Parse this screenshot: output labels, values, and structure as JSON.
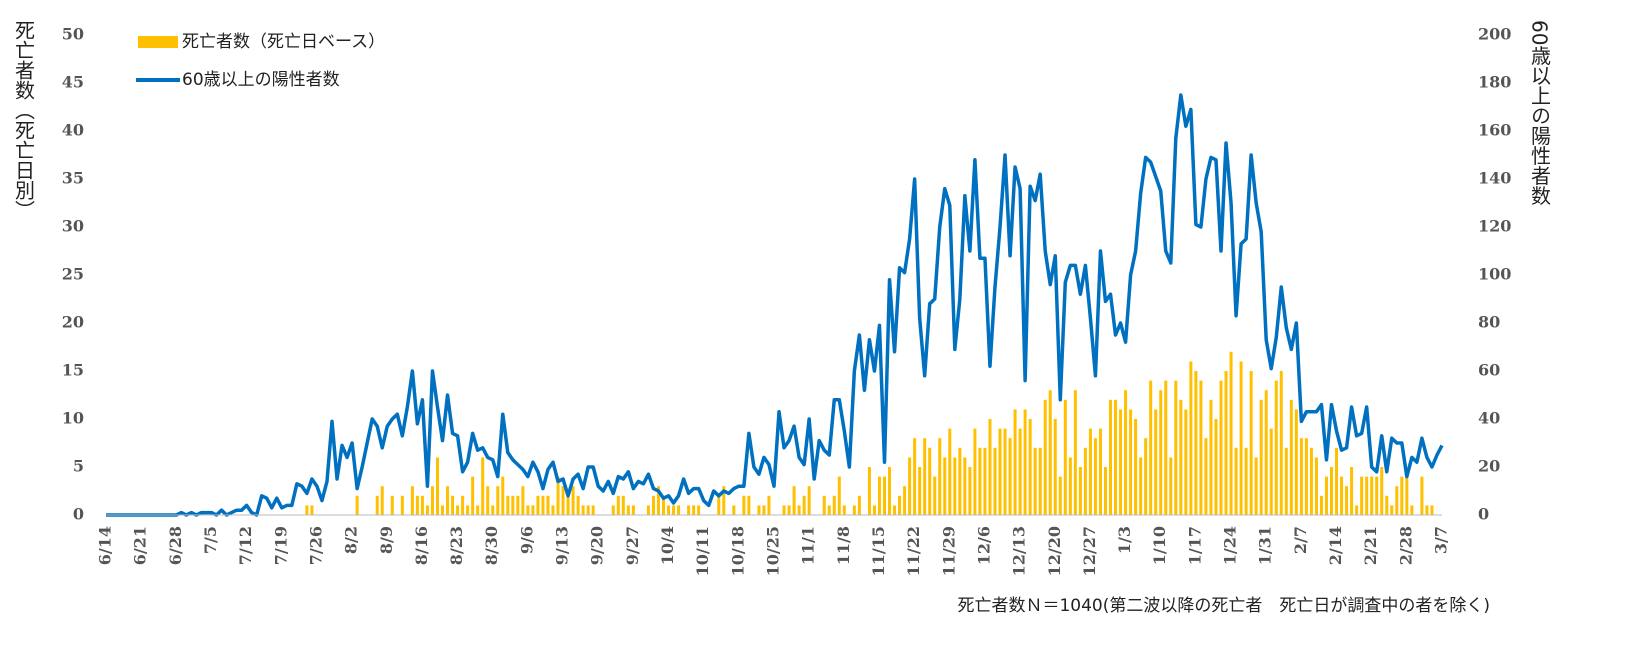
{
  "chart_data": {
    "type": "bar_line",
    "legend_position": "upper left",
    "y_label": "死亡者数（死亡日別）",
    "y2_label": "60歳以上の陽性者数",
    "footnote": "死亡者数Ｎ＝1040(第二波以降の死亡者　死亡日が調査中の者を除く)",
    "ylim": [
      0,
      50
    ],
    "yticks": [
      0,
      5,
      10,
      15,
      20,
      25,
      30,
      35,
      40,
      45,
      50
    ],
    "y2lim": [
      0,
      200
    ],
    "y2ticks": [
      0,
      20,
      40,
      60,
      80,
      100,
      120,
      140,
      160,
      180,
      200
    ],
    "categories": [
      "6/14",
      null,
      null,
      null,
      null,
      null,
      null,
      "6/21",
      null,
      null,
      null,
      null,
      null,
      null,
      "6/28",
      null,
      null,
      null,
      null,
      null,
      null,
      "7/5",
      null,
      null,
      null,
      null,
      null,
      null,
      "7/12",
      null,
      null,
      null,
      null,
      null,
      null,
      "7/19",
      null,
      null,
      null,
      null,
      null,
      null,
      "7/26",
      null,
      null,
      null,
      null,
      null,
      null,
      "8/2",
      null,
      null,
      null,
      null,
      null,
      null,
      "8/9",
      null,
      null,
      null,
      null,
      null,
      null,
      "8/16",
      null,
      null,
      null,
      null,
      null,
      null,
      "8/23",
      null,
      null,
      null,
      null,
      null,
      null,
      "8/30",
      null,
      null,
      null,
      null,
      null,
      null,
      "9/6",
      null,
      null,
      null,
      null,
      null,
      null,
      "9/13",
      null,
      null,
      null,
      null,
      null,
      null,
      "9/20",
      null,
      null,
      null,
      null,
      null,
      null,
      "9/27",
      null,
      null,
      null,
      null,
      null,
      null,
      "10/4",
      null,
      null,
      null,
      null,
      null,
      null,
      "10/11",
      null,
      null,
      null,
      null,
      null,
      null,
      "10/18",
      null,
      null,
      null,
      null,
      null,
      null,
      "10/25",
      null,
      null,
      null,
      null,
      null,
      null,
      "11/1",
      null,
      null,
      null,
      null,
      null,
      null,
      "11/8",
      null,
      null,
      null,
      null,
      null,
      null,
      "11/15",
      null,
      null,
      null,
      null,
      null,
      null,
      "11/22",
      null,
      null,
      null,
      null,
      null,
      null,
      "11/29",
      null,
      null,
      null,
      null,
      null,
      null,
      "12/6",
      null,
      null,
      null,
      null,
      null,
      null,
      "12/13",
      null,
      null,
      null,
      null,
      null,
      null,
      "12/20",
      null,
      null,
      null,
      null,
      null,
      null,
      "12/27",
      null,
      null,
      null,
      null,
      null,
      null,
      "1/3",
      null,
      null,
      null,
      null,
      null,
      null,
      "1/10",
      null,
      null,
      null,
      null,
      null,
      null,
      "1/17",
      null,
      null,
      null,
      null,
      null,
      null,
      "1/24",
      null,
      null,
      null,
      null,
      null,
      null,
      "1/31",
      null,
      null,
      null,
      null,
      null,
      null,
      "2/7",
      null,
      null,
      null,
      null,
      null,
      null,
      "2/14",
      null,
      null,
      null,
      null,
      null,
      null,
      "2/21",
      null,
      null,
      null,
      null,
      null,
      null,
      "2/28",
      null,
      null,
      null,
      null,
      null,
      null,
      "3/7"
    ],
    "series": [
      {
        "name": "死亡者数（死亡日ベース）",
        "type": "bar",
        "color": "#FFC000",
        "values": [
          0,
          0,
          0,
          0,
          0,
          0,
          0,
          0,
          0,
          0,
          0,
          0,
          0,
          0,
          0,
          0,
          0,
          0,
          0,
          0,
          0,
          0,
          0,
          0,
          0,
          0,
          0,
          0,
          0,
          0,
          0,
          0,
          0,
          0,
          0,
          0,
          0,
          0,
          0,
          0,
          1,
          1,
          0,
          0,
          0,
          0,
          0,
          0,
          0,
          0,
          2,
          0,
          0,
          0,
          2,
          3,
          0,
          2,
          0,
          2,
          0,
          3,
          2,
          2,
          1,
          3,
          6,
          1,
          3,
          2,
          1,
          2,
          1,
          4,
          1,
          6,
          3,
          1,
          3,
          4,
          2,
          2,
          2,
          3,
          1,
          1,
          2,
          2,
          2,
          1,
          4,
          3,
          2,
          3,
          2,
          1,
          1,
          1,
          0,
          0,
          0,
          1,
          2,
          2,
          1,
          1,
          0,
          0,
          1,
          2,
          3,
          2,
          1,
          1,
          1,
          0,
          1,
          1,
          1,
          0,
          0,
          0,
          2,
          3,
          0,
          1,
          0,
          2,
          2,
          0,
          1,
          1,
          2,
          0,
          0,
          1,
          1,
          3,
          1,
          2,
          3,
          0,
          0,
          2,
          1,
          2,
          4,
          1,
          0,
          1,
          2,
          0,
          5,
          1,
          4,
          4,
          5,
          1,
          2,
          3,
          6,
          8,
          5,
          8,
          7,
          4,
          8,
          6,
          9,
          6,
          7,
          6,
          5,
          9,
          7,
          7,
          10,
          7,
          9,
          9,
          8,
          11,
          9,
          11,
          10,
          7,
          7,
          12,
          13,
          10,
          4,
          12,
          6,
          13,
          5,
          7,
          9,
          8,
          9,
          5,
          12,
          12,
          11,
          13,
          11,
          10,
          6,
          8,
          14,
          11,
          13,
          14,
          6,
          14,
          12,
          11,
          16,
          15,
          14,
          8,
          12,
          10,
          14,
          15,
          17,
          7,
          16,
          7,
          15,
          6,
          12,
          13,
          9,
          14,
          15,
          7,
          12,
          11,
          8,
          8,
          7,
          6,
          2,
          4,
          5,
          7,
          4,
          3,
          5,
          1,
          4,
          4,
          4,
          4,
          5,
          2,
          1,
          3,
          4,
          4,
          1,
          0,
          4,
          1,
          1,
          0,
          0
        ]
      },
      {
        "name": "60歳以上の陽性者数",
        "type": "line",
        "axis": "y2",
        "color": "#0070C0",
        "values": [
          0,
          0,
          0,
          0,
          0,
          0,
          0,
          0,
          0,
          0,
          0,
          0,
          0,
          0,
          0,
          1,
          0,
          1,
          0,
          1,
          1,
          1,
          0,
          2,
          0,
          1,
          2,
          2,
          4,
          1,
          0,
          8,
          7,
          3,
          7,
          3,
          4,
          4,
          13,
          12,
          9,
          15,
          12,
          6,
          14,
          39,
          15,
          29,
          24,
          30,
          11,
          20,
          30,
          40,
          37,
          28,
          37,
          40,
          42,
          33,
          45,
          60,
          38,
          48,
          12,
          60,
          45,
          31,
          50,
          34,
          33,
          18,
          22,
          34,
          27,
          28,
          24,
          23,
          16,
          42,
          26,
          23,
          21,
          19,
          16,
          22,
          18,
          11,
          19,
          22,
          14,
          15,
          8,
          15,
          17,
          11,
          20,
          20,
          12,
          10,
          14,
          9,
          16,
          15,
          18,
          11,
          14,
          13,
          17,
          11,
          10,
          7,
          8,
          5,
          8,
          15,
          9,
          11,
          11,
          6,
          4,
          10,
          8,
          10,
          9,
          11,
          12,
          12,
          34,
          20,
          17,
          24,
          21,
          12,
          43,
          28,
          31,
          37,
          24,
          21,
          40,
          15,
          31,
          27,
          25,
          48,
          48,
          35,
          20,
          60,
          75,
          52,
          73,
          60,
          79,
          22,
          98,
          68,
          103,
          101,
          115,
          140,
          82,
          58,
          88,
          90,
          120,
          136,
          129,
          69,
          90,
          133,
          110,
          148,
          107,
          107,
          62,
          95,
          120,
          150,
          108,
          145,
          136,
          56,
          137,
          131,
          142,
          110,
          96,
          108,
          48,
          97,
          104,
          104,
          92,
          104,
          82,
          58,
          110,
          89,
          92,
          75,
          80,
          72,
          100,
          110,
          134,
          149,
          147,
          141,
          135,
          110,
          105,
          157,
          175,
          162,
          169,
          121,
          120,
          140,
          149,
          148,
          110,
          155,
          130,
          83,
          113,
          115,
          150,
          130,
          118,
          73,
          61,
          74,
          95,
          78,
          69,
          80,
          39,
          43,
          43,
          43,
          46,
          23,
          46,
          35,
          27,
          28,
          45,
          33,
          34,
          45,
          20,
          18,
          33,
          18,
          32,
          30,
          30,
          16,
          24,
          22,
          32,
          24,
          20,
          25,
          29
        ]
      }
    ]
  }
}
